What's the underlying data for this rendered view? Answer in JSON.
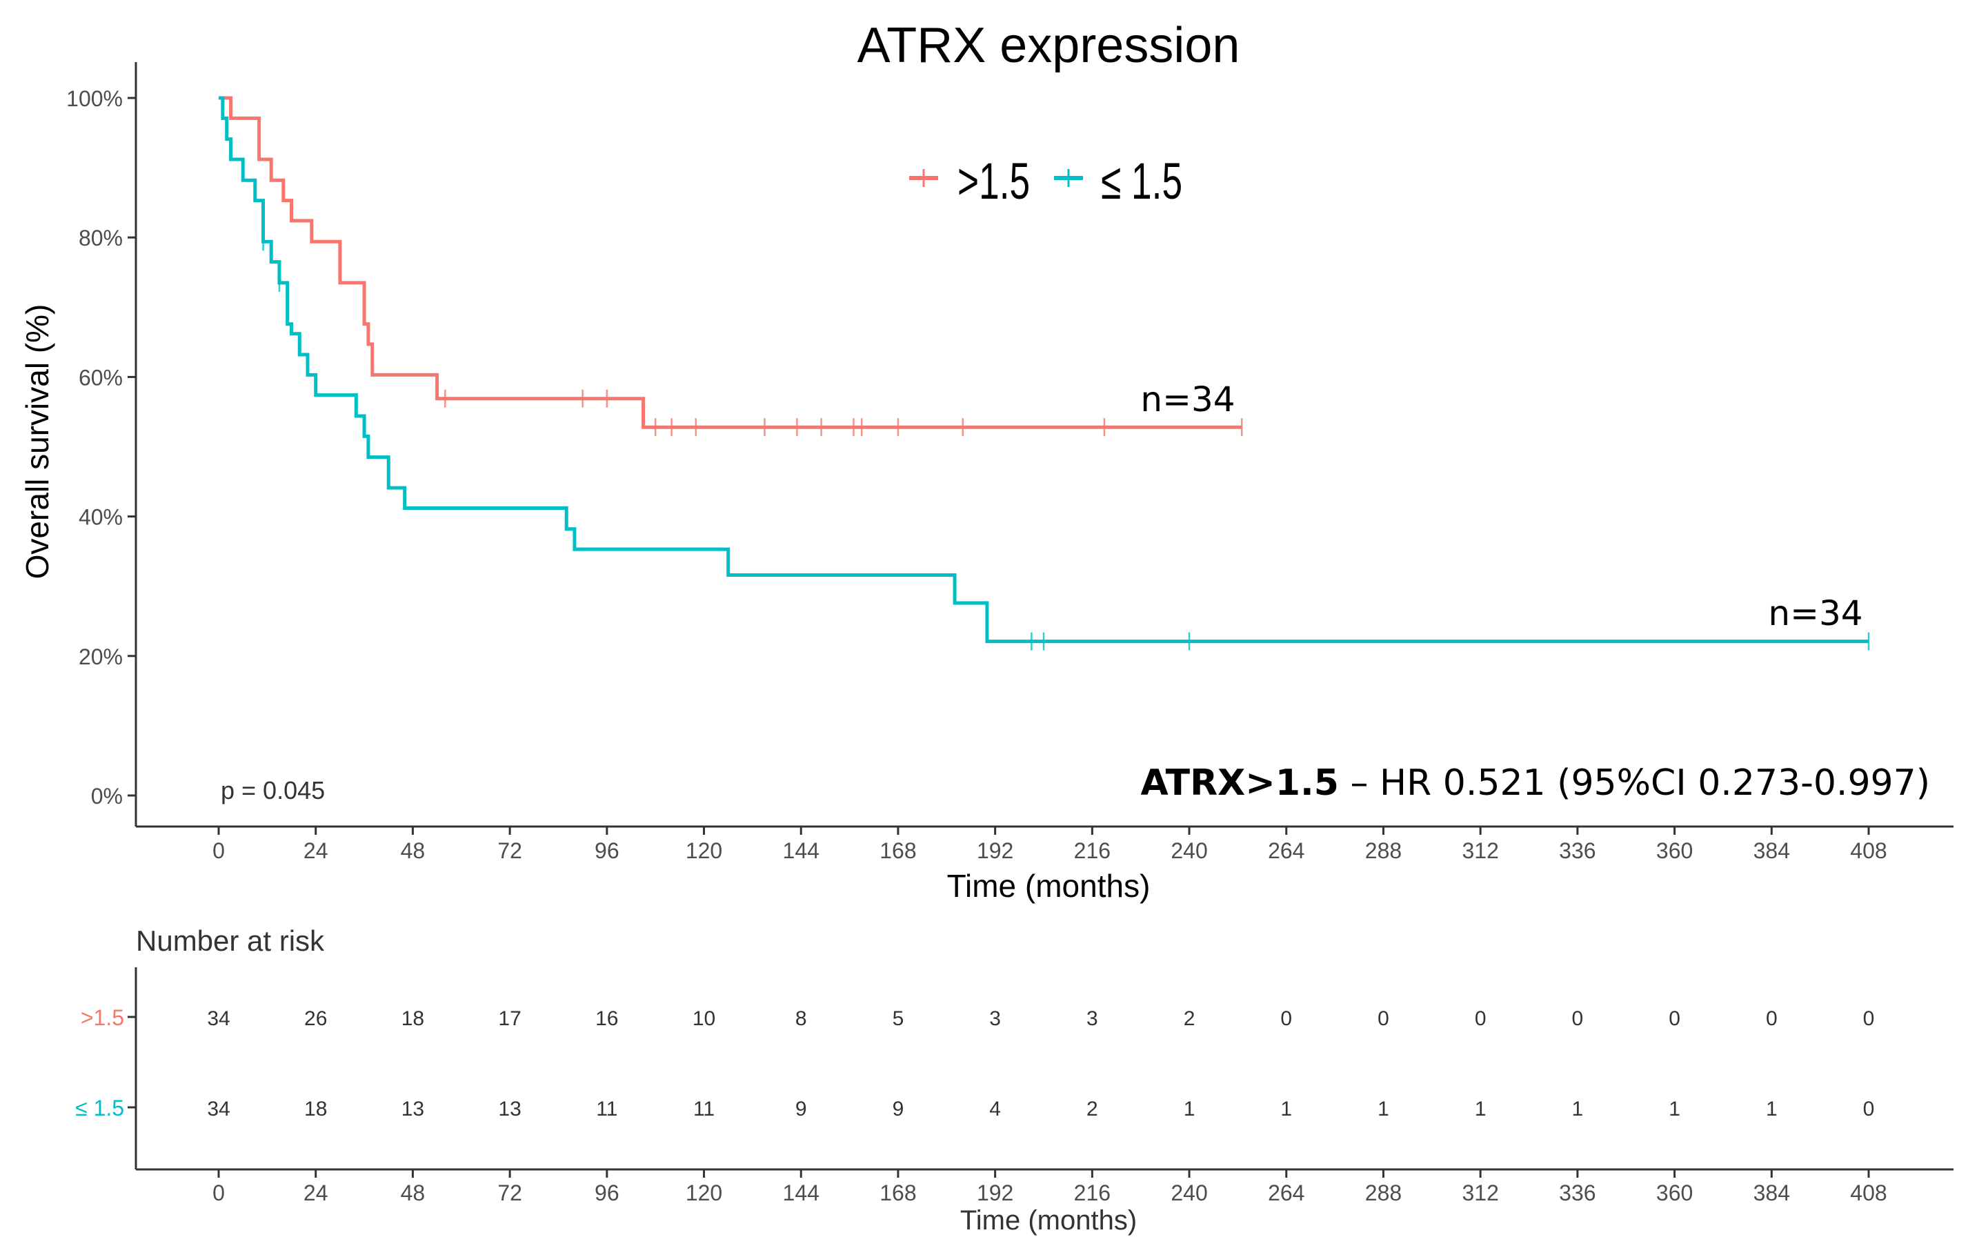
{
  "colors": {
    "group1": "#F8766D",
    "group2": "#00BFC4",
    "axis": "#333333",
    "text": "#000000",
    "tick_text": "#4d4d4d"
  },
  "chart_data": {
    "type": "line",
    "subtype": "kaplan-meier",
    "title": "ATRX expression",
    "xlabel": "Time (months)",
    "ylabel": "Overall survival (%)",
    "xlim": [
      0,
      408
    ],
    "ylim": [
      0,
      100
    ],
    "x_ticks": [
      0,
      24,
      48,
      72,
      96,
      120,
      144,
      168,
      192,
      216,
      240,
      264,
      288,
      312,
      336,
      360,
      384,
      408
    ],
    "y_ticks": [
      0,
      20,
      40,
      60,
      80,
      100
    ],
    "y_tick_labels": [
      "0%",
      "20%",
      "40%",
      "60%",
      "80%",
      "100%"
    ],
    "legend": {
      "position": "top-center",
      "entries": [
        ">1.5",
        "≤ 1.5"
      ]
    },
    "series": [
      {
        "name": ">1.5",
        "color": "#F8766D",
        "n_label": "n=34",
        "steps": [
          [
            0,
            100
          ],
          [
            3,
            97.1
          ],
          [
            10,
            91.2
          ],
          [
            13,
            88.2
          ],
          [
            16,
            85.3
          ],
          [
            18,
            82.4
          ],
          [
            23,
            79.4
          ],
          [
            30,
            73.5
          ],
          [
            36,
            67.6
          ],
          [
            37,
            64.7
          ],
          [
            38,
            60.3
          ],
          [
            54,
            56.9
          ],
          [
            105,
            52.8
          ],
          [
            253,
            52.8
          ]
        ],
        "censored": [
          [
            56,
            56.9
          ],
          [
            90,
            56.9
          ],
          [
            96,
            56.9
          ],
          [
            108,
            52.8
          ],
          [
            112,
            52.8
          ],
          [
            118,
            52.8
          ],
          [
            135,
            52.8
          ],
          [
            143,
            52.8
          ],
          [
            149,
            52.8
          ],
          [
            157,
            52.8
          ],
          [
            159,
            52.8
          ],
          [
            168,
            52.8
          ],
          [
            184,
            52.8
          ],
          [
            219,
            52.8
          ],
          [
            253,
            52.8
          ]
        ]
      },
      {
        "name": "≤ 1.5",
        "color": "#00BFC4",
        "n_label": "n=34",
        "steps": [
          [
            0,
            100
          ],
          [
            1,
            97.1
          ],
          [
            2,
            94.1
          ],
          [
            3,
            91.2
          ],
          [
            6,
            88.2
          ],
          [
            9,
            85.3
          ],
          [
            11,
            79.4
          ],
          [
            13,
            76.5
          ],
          [
            15,
            73.5
          ],
          [
            17,
            67.6
          ],
          [
            18,
            66.2
          ],
          [
            20,
            63.2
          ],
          [
            22,
            60.3
          ],
          [
            24,
            57.4
          ],
          [
            34,
            54.4
          ],
          [
            36,
            51.5
          ],
          [
            37,
            48.5
          ],
          [
            42,
            44.1
          ],
          [
            46,
            41.2
          ],
          [
            86,
            38.2
          ],
          [
            88,
            35.3
          ],
          [
            126,
            31.6
          ],
          [
            182,
            27.6
          ],
          [
            190,
            22.1
          ],
          [
            408,
            22.1
          ]
        ],
        "censored": [
          [
            11,
            79.4
          ],
          [
            15,
            73.5
          ],
          [
            201,
            22.1
          ],
          [
            204,
            22.1
          ],
          [
            240,
            22.1
          ],
          [
            408,
            22.1
          ]
        ]
      }
    ],
    "annotations": [
      {
        "text": "p = 0.045"
      }
    ],
    "hr_annotation": {
      "bold": "ATRX>1.5",
      "rest": " – HR 0.521 (95%CI 0.273-0.997)"
    },
    "risk_table": {
      "title": "Number at risk",
      "xlabel": "Time (months)",
      "times": [
        0,
        24,
        48,
        72,
        96,
        120,
        144,
        168,
        192,
        216,
        240,
        264,
        288,
        312,
        336,
        360,
        384,
        408
      ],
      "rows": [
        {
          "label": ">1.5",
          "color": "#F8766D",
          "values": [
            34,
            26,
            18,
            17,
            16,
            10,
            8,
            5,
            3,
            3,
            2,
            0,
            0,
            0,
            0,
            0,
            0,
            0
          ]
        },
        {
          "label": "≤ 1.5",
          "color": "#00BFC4",
          "values": [
            34,
            18,
            13,
            13,
            11,
            11,
            9,
            9,
            4,
            2,
            1,
            1,
            1,
            1,
            1,
            1,
            1,
            0
          ]
        }
      ]
    }
  }
}
